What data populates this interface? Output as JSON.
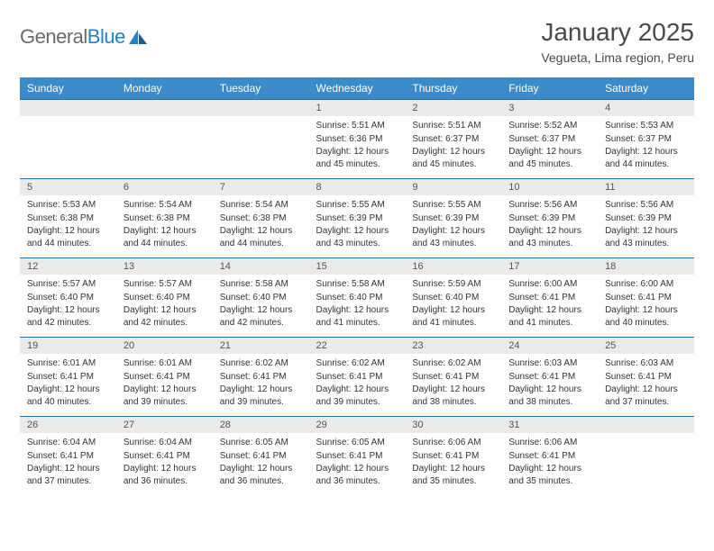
{
  "logo": {
    "text1": "General",
    "text2": "Blue"
  },
  "title": "January 2025",
  "subtitle": "Vegueta, Lima region, Peru",
  "colors": {
    "header_bg": "#3b8bc9",
    "header_fg": "#ffffff",
    "border": "#2a6fa5",
    "daynum_bg": "#e8eaec",
    "logo_gray": "#6b6b6b",
    "logo_blue": "#2a7fbf"
  },
  "weekdays": [
    "Sunday",
    "Monday",
    "Tuesday",
    "Wednesday",
    "Thursday",
    "Friday",
    "Saturday"
  ],
  "weeks": [
    [
      null,
      null,
      null,
      {
        "n": "1",
        "sr": "5:51 AM",
        "ss": "6:36 PM",
        "dl": "12 hours and 45 minutes."
      },
      {
        "n": "2",
        "sr": "5:51 AM",
        "ss": "6:37 PM",
        "dl": "12 hours and 45 minutes."
      },
      {
        "n": "3",
        "sr": "5:52 AM",
        "ss": "6:37 PM",
        "dl": "12 hours and 45 minutes."
      },
      {
        "n": "4",
        "sr": "5:53 AM",
        "ss": "6:37 PM",
        "dl": "12 hours and 44 minutes."
      }
    ],
    [
      {
        "n": "5",
        "sr": "5:53 AM",
        "ss": "6:38 PM",
        "dl": "12 hours and 44 minutes."
      },
      {
        "n": "6",
        "sr": "5:54 AM",
        "ss": "6:38 PM",
        "dl": "12 hours and 44 minutes."
      },
      {
        "n": "7",
        "sr": "5:54 AM",
        "ss": "6:38 PM",
        "dl": "12 hours and 44 minutes."
      },
      {
        "n": "8",
        "sr": "5:55 AM",
        "ss": "6:39 PM",
        "dl": "12 hours and 43 minutes."
      },
      {
        "n": "9",
        "sr": "5:55 AM",
        "ss": "6:39 PM",
        "dl": "12 hours and 43 minutes."
      },
      {
        "n": "10",
        "sr": "5:56 AM",
        "ss": "6:39 PM",
        "dl": "12 hours and 43 minutes."
      },
      {
        "n": "11",
        "sr": "5:56 AM",
        "ss": "6:39 PM",
        "dl": "12 hours and 43 minutes."
      }
    ],
    [
      {
        "n": "12",
        "sr": "5:57 AM",
        "ss": "6:40 PM",
        "dl": "12 hours and 42 minutes."
      },
      {
        "n": "13",
        "sr": "5:57 AM",
        "ss": "6:40 PM",
        "dl": "12 hours and 42 minutes."
      },
      {
        "n": "14",
        "sr": "5:58 AM",
        "ss": "6:40 PM",
        "dl": "12 hours and 42 minutes."
      },
      {
        "n": "15",
        "sr": "5:58 AM",
        "ss": "6:40 PM",
        "dl": "12 hours and 41 minutes."
      },
      {
        "n": "16",
        "sr": "5:59 AM",
        "ss": "6:40 PM",
        "dl": "12 hours and 41 minutes."
      },
      {
        "n": "17",
        "sr": "6:00 AM",
        "ss": "6:41 PM",
        "dl": "12 hours and 41 minutes."
      },
      {
        "n": "18",
        "sr": "6:00 AM",
        "ss": "6:41 PM",
        "dl": "12 hours and 40 minutes."
      }
    ],
    [
      {
        "n": "19",
        "sr": "6:01 AM",
        "ss": "6:41 PM",
        "dl": "12 hours and 40 minutes."
      },
      {
        "n": "20",
        "sr": "6:01 AM",
        "ss": "6:41 PM",
        "dl": "12 hours and 39 minutes."
      },
      {
        "n": "21",
        "sr": "6:02 AM",
        "ss": "6:41 PM",
        "dl": "12 hours and 39 minutes."
      },
      {
        "n": "22",
        "sr": "6:02 AM",
        "ss": "6:41 PM",
        "dl": "12 hours and 39 minutes."
      },
      {
        "n": "23",
        "sr": "6:02 AM",
        "ss": "6:41 PM",
        "dl": "12 hours and 38 minutes."
      },
      {
        "n": "24",
        "sr": "6:03 AM",
        "ss": "6:41 PM",
        "dl": "12 hours and 38 minutes."
      },
      {
        "n": "25",
        "sr": "6:03 AM",
        "ss": "6:41 PM",
        "dl": "12 hours and 37 minutes."
      }
    ],
    [
      {
        "n": "26",
        "sr": "6:04 AM",
        "ss": "6:41 PM",
        "dl": "12 hours and 37 minutes."
      },
      {
        "n": "27",
        "sr": "6:04 AM",
        "ss": "6:41 PM",
        "dl": "12 hours and 36 minutes."
      },
      {
        "n": "28",
        "sr": "6:05 AM",
        "ss": "6:41 PM",
        "dl": "12 hours and 36 minutes."
      },
      {
        "n": "29",
        "sr": "6:05 AM",
        "ss": "6:41 PM",
        "dl": "12 hours and 36 minutes."
      },
      {
        "n": "30",
        "sr": "6:06 AM",
        "ss": "6:41 PM",
        "dl": "12 hours and 35 minutes."
      },
      {
        "n": "31",
        "sr": "6:06 AM",
        "ss": "6:41 PM",
        "dl": "12 hours and 35 minutes."
      },
      null
    ]
  ],
  "labels": {
    "sunrise": "Sunrise:",
    "sunset": "Sunset:",
    "daylight": "Daylight:"
  }
}
